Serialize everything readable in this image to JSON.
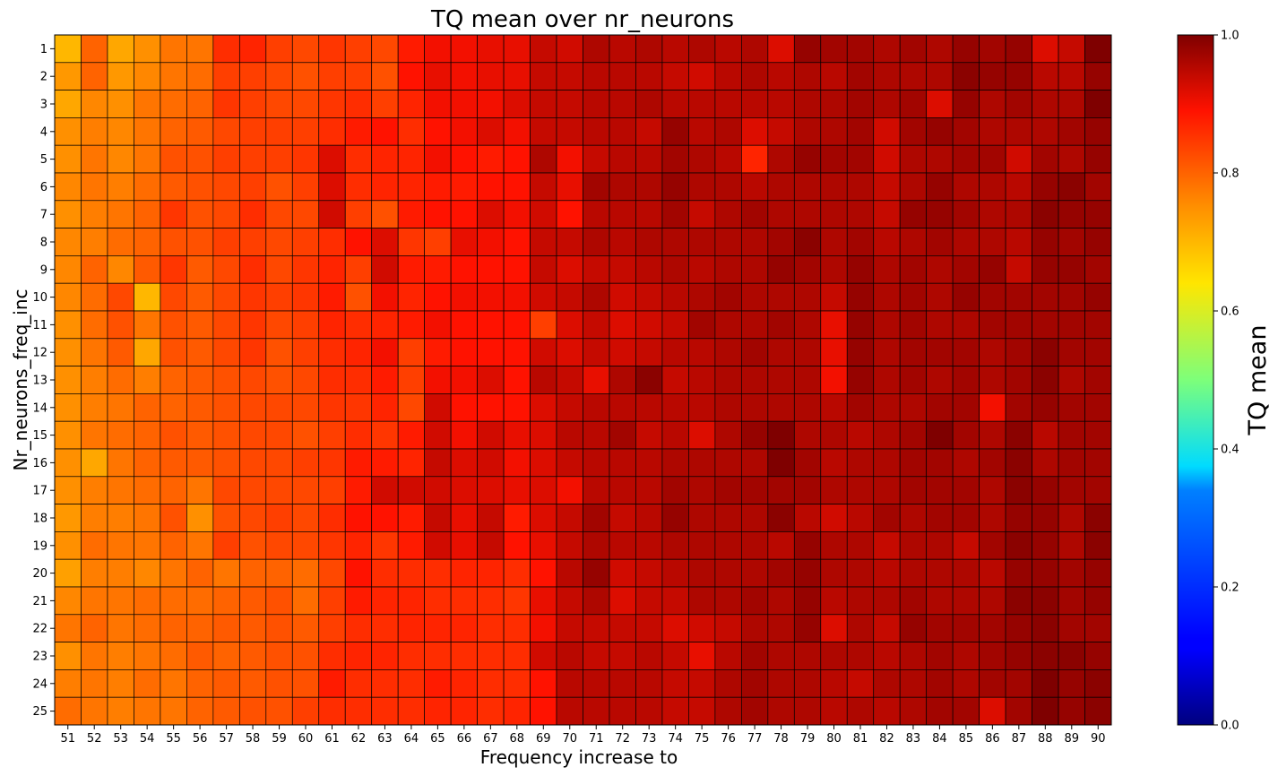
{
  "chart_data": {
    "type": "heatmap",
    "title": "TQ mean over nr_neurons",
    "xlabel": "Frequency increase to",
    "ylabel": "Nr_neurons_freq_inc",
    "x": [
      51,
      52,
      53,
      54,
      55,
      56,
      57,
      58,
      59,
      60,
      61,
      62,
      63,
      64,
      65,
      66,
      67,
      68,
      69,
      70,
      71,
      72,
      73,
      74,
      75,
      76,
      77,
      78,
      79,
      80,
      81,
      82,
      83,
      84,
      85,
      86,
      87,
      88,
      89,
      90
    ],
    "y": [
      1,
      2,
      3,
      4,
      5,
      6,
      7,
      8,
      9,
      10,
      11,
      12,
      13,
      14,
      15,
      16,
      17,
      18,
      19,
      20,
      21,
      22,
      23,
      24,
      25
    ],
    "colorbar": {
      "label": "TQ mean",
      "range": [
        0.0,
        1.0
      ],
      "ticks": [
        "0.0",
        "0.2",
        "0.4",
        "0.6",
        "0.8",
        "1.0"
      ],
      "colormap": "jet"
    },
    "grid": true,
    "values": [
      [
        0.7,
        0.8,
        0.72,
        0.75,
        0.78,
        0.78,
        0.86,
        0.87,
        0.84,
        0.83,
        0.85,
        0.84,
        0.83,
        0.88,
        0.9,
        0.9,
        0.91,
        0.91,
        0.94,
        0.93,
        0.96,
        0.95,
        0.96,
        0.95,
        0.96,
        0.95,
        0.96,
        0.92,
        0.98,
        0.97,
        0.97,
        0.96,
        0.97,
        0.96,
        0.98,
        0.97,
        0.98,
        0.92,
        0.94,
        1.0
      ],
      [
        0.74,
        0.8,
        0.74,
        0.76,
        0.78,
        0.79,
        0.84,
        0.84,
        0.83,
        0.82,
        0.84,
        0.84,
        0.82,
        0.89,
        0.91,
        0.9,
        0.91,
        0.91,
        0.94,
        0.94,
        0.95,
        0.95,
        0.95,
        0.94,
        0.93,
        0.95,
        0.96,
        0.95,
        0.96,
        0.95,
        0.97,
        0.96,
        0.96,
        0.96,
        0.99,
        0.98,
        0.98,
        0.95,
        0.95,
        0.98
      ],
      [
        0.72,
        0.76,
        0.75,
        0.78,
        0.79,
        0.8,
        0.85,
        0.84,
        0.83,
        0.83,
        0.85,
        0.86,
        0.84,
        0.87,
        0.9,
        0.9,
        0.9,
        0.92,
        0.94,
        0.94,
        0.95,
        0.95,
        0.96,
        0.95,
        0.95,
        0.95,
        0.95,
        0.95,
        0.96,
        0.96,
        0.97,
        0.96,
        0.97,
        0.92,
        0.98,
        0.96,
        0.97,
        0.96,
        0.96,
        1.0
      ],
      [
        0.75,
        0.77,
        0.76,
        0.78,
        0.8,
        0.81,
        0.83,
        0.84,
        0.84,
        0.84,
        0.86,
        0.88,
        0.89,
        0.86,
        0.89,
        0.9,
        0.92,
        0.9,
        0.94,
        0.94,
        0.95,
        0.95,
        0.94,
        0.98,
        0.95,
        0.96,
        0.92,
        0.94,
        0.96,
        0.96,
        0.97,
        0.93,
        0.97,
        0.98,
        0.97,
        0.96,
        0.96,
        0.96,
        0.97,
        0.98
      ],
      [
        0.75,
        0.78,
        0.76,
        0.78,
        0.82,
        0.82,
        0.84,
        0.84,
        0.84,
        0.85,
        0.92,
        0.86,
        0.87,
        0.87,
        0.9,
        0.89,
        0.88,
        0.89,
        0.96,
        0.9,
        0.94,
        0.95,
        0.95,
        0.97,
        0.96,
        0.95,
        0.87,
        0.96,
        0.98,
        0.97,
        0.97,
        0.93,
        0.96,
        0.96,
        0.97,
        0.97,
        0.93,
        0.97,
        0.96,
        0.98
      ],
      [
        0.76,
        0.78,
        0.77,
        0.79,
        0.81,
        0.82,
        0.83,
        0.84,
        0.82,
        0.84,
        0.92,
        0.86,
        0.87,
        0.87,
        0.88,
        0.88,
        0.89,
        0.89,
        0.94,
        0.91,
        0.97,
        0.96,
        0.96,
        0.98,
        0.96,
        0.96,
        0.95,
        0.96,
        0.96,
        0.96,
        0.96,
        0.94,
        0.96,
        0.98,
        0.96,
        0.96,
        0.95,
        0.98,
        0.99,
        0.97
      ],
      [
        0.75,
        0.77,
        0.78,
        0.8,
        0.85,
        0.82,
        0.83,
        0.86,
        0.83,
        0.83,
        0.93,
        0.84,
        0.82,
        0.88,
        0.89,
        0.89,
        0.92,
        0.9,
        0.93,
        0.89,
        0.95,
        0.95,
        0.95,
        0.97,
        0.94,
        0.96,
        0.97,
        0.96,
        0.96,
        0.96,
        0.96,
        0.94,
        0.98,
        0.98,
        0.97,
        0.96,
        0.96,
        0.99,
        0.98,
        0.98
      ],
      [
        0.76,
        0.77,
        0.79,
        0.8,
        0.82,
        0.82,
        0.84,
        0.84,
        0.83,
        0.84,
        0.86,
        0.89,
        0.92,
        0.85,
        0.84,
        0.91,
        0.9,
        0.89,
        0.94,
        0.94,
        0.96,
        0.95,
        0.96,
        0.96,
        0.96,
        0.96,
        0.96,
        0.97,
        0.99,
        0.96,
        0.97,
        0.95,
        0.96,
        0.97,
        0.96,
        0.96,
        0.95,
        0.98,
        0.97,
        0.98
      ],
      [
        0.76,
        0.8,
        0.76,
        0.81,
        0.85,
        0.81,
        0.83,
        0.86,
        0.83,
        0.85,
        0.87,
        0.84,
        0.93,
        0.88,
        0.88,
        0.89,
        0.89,
        0.89,
        0.94,
        0.92,
        0.94,
        0.94,
        0.95,
        0.96,
        0.95,
        0.96,
        0.96,
        0.98,
        0.97,
        0.96,
        0.98,
        0.96,
        0.97,
        0.96,
        0.97,
        0.98,
        0.94,
        0.98,
        0.98,
        0.97
      ],
      [
        0.76,
        0.79,
        0.83,
        0.7,
        0.83,
        0.81,
        0.83,
        0.85,
        0.84,
        0.85,
        0.88,
        0.82,
        0.9,
        0.87,
        0.89,
        0.9,
        0.9,
        0.9,
        0.93,
        0.94,
        0.96,
        0.93,
        0.94,
        0.95,
        0.96,
        0.97,
        0.96,
        0.96,
        0.96,
        0.94,
        0.98,
        0.96,
        0.97,
        0.96,
        0.98,
        0.97,
        0.97,
        0.97,
        0.97,
        0.98
      ],
      [
        0.75,
        0.79,
        0.82,
        0.78,
        0.82,
        0.81,
        0.83,
        0.85,
        0.83,
        0.84,
        0.87,
        0.86,
        0.87,
        0.88,
        0.9,
        0.89,
        0.89,
        0.89,
        0.84,
        0.92,
        0.94,
        0.92,
        0.93,
        0.94,
        0.97,
        0.96,
        0.96,
        0.97,
        0.96,
        0.91,
        0.98,
        0.96,
        0.97,
        0.96,
        0.96,
        0.97,
        0.97,
        0.97,
        0.97,
        0.97
      ],
      [
        0.75,
        0.78,
        0.81,
        0.72,
        0.82,
        0.81,
        0.83,
        0.85,
        0.82,
        0.84,
        0.86,
        0.87,
        0.9,
        0.84,
        0.88,
        0.89,
        0.89,
        0.89,
        0.93,
        0.92,
        0.94,
        0.93,
        0.94,
        0.95,
        0.95,
        0.96,
        0.97,
        0.96,
        0.96,
        0.91,
        0.98,
        0.96,
        0.97,
        0.97,
        0.97,
        0.96,
        0.97,
        0.99,
        0.97,
        0.97
      ],
      [
        0.75,
        0.77,
        0.79,
        0.77,
        0.8,
        0.81,
        0.82,
        0.83,
        0.82,
        0.83,
        0.86,
        0.86,
        0.88,
        0.84,
        0.9,
        0.9,
        0.92,
        0.89,
        0.95,
        0.94,
        0.91,
        0.96,
        0.99,
        0.94,
        0.95,
        0.96,
        0.96,
        0.96,
        0.96,
        0.9,
        0.98,
        0.96,
        0.97,
        0.96,
        0.97,
        0.96,
        0.97,
        0.99,
        0.96,
        0.97
      ],
      [
        0.75,
        0.77,
        0.78,
        0.8,
        0.8,
        0.81,
        0.82,
        0.83,
        0.83,
        0.83,
        0.85,
        0.85,
        0.87,
        0.83,
        0.93,
        0.89,
        0.89,
        0.89,
        0.92,
        0.94,
        0.95,
        0.95,
        0.95,
        0.95,
        0.95,
        0.96,
        0.96,
        0.96,
        0.96,
        0.95,
        0.97,
        0.96,
        0.96,
        0.97,
        0.97,
        0.9,
        0.97,
        0.98,
        0.97,
        0.97
      ],
      [
        0.75,
        0.78,
        0.79,
        0.8,
        0.82,
        0.81,
        0.82,
        0.83,
        0.83,
        0.82,
        0.84,
        0.86,
        0.85,
        0.88,
        0.93,
        0.9,
        0.93,
        0.91,
        0.92,
        0.95,
        0.95,
        0.97,
        0.94,
        0.95,
        0.92,
        0.96,
        0.98,
        1.0,
        0.96,
        0.96,
        0.95,
        0.96,
        0.97,
        1.0,
        0.97,
        0.96,
        0.99,
        0.95,
        0.97,
        0.97
      ],
      [
        0.75,
        0.72,
        0.78,
        0.8,
        0.81,
        0.81,
        0.82,
        0.83,
        0.83,
        0.84,
        0.85,
        0.88,
        0.88,
        0.87,
        0.94,
        0.92,
        0.93,
        0.9,
        0.92,
        0.94,
        0.95,
        0.95,
        0.95,
        0.96,
        0.96,
        0.96,
        0.96,
        1.0,
        0.97,
        0.95,
        0.96,
        0.96,
        0.97,
        0.97,
        0.96,
        0.97,
        0.99,
        0.96,
        0.97,
        0.97
      ],
      [
        0.75,
        0.77,
        0.78,
        0.79,
        0.8,
        0.78,
        0.83,
        0.83,
        0.83,
        0.83,
        0.84,
        0.88,
        0.93,
        0.93,
        0.93,
        0.92,
        0.92,
        0.91,
        0.92,
        0.9,
        0.95,
        0.95,
        0.95,
        0.97,
        0.96,
        0.97,
        0.97,
        0.97,
        0.97,
        0.96,
        0.96,
        0.96,
        0.97,
        0.97,
        0.97,
        0.96,
        0.99,
        0.98,
        0.97,
        0.97
      ],
      [
        0.74,
        0.77,
        0.77,
        0.78,
        0.82,
        0.75,
        0.82,
        0.83,
        0.84,
        0.83,
        0.86,
        0.89,
        0.89,
        0.88,
        0.94,
        0.91,
        0.94,
        0.88,
        0.92,
        0.94,
        0.97,
        0.94,
        0.95,
        0.98,
        0.96,
        0.96,
        0.96,
        0.99,
        0.95,
        0.93,
        0.95,
        0.97,
        0.96,
        0.97,
        0.97,
        0.96,
        0.98,
        0.98,
        0.96,
        0.99
      ],
      [
        0.75,
        0.79,
        0.78,
        0.78,
        0.8,
        0.78,
        0.84,
        0.82,
        0.83,
        0.83,
        0.85,
        0.87,
        0.85,
        0.88,
        0.93,
        0.91,
        0.94,
        0.89,
        0.91,
        0.94,
        0.96,
        0.95,
        0.95,
        0.96,
        0.96,
        0.96,
        0.96,
        0.95,
        0.98,
        0.96,
        0.96,
        0.94,
        0.96,
        0.96,
        0.94,
        0.97,
        0.99,
        0.98,
        0.96,
        0.99
      ],
      [
        0.73,
        0.77,
        0.77,
        0.76,
        0.78,
        0.8,
        0.78,
        0.8,
        0.8,
        0.79,
        0.83,
        0.89,
        0.86,
        0.86,
        0.86,
        0.87,
        0.87,
        0.86,
        0.89,
        0.95,
        0.98,
        0.93,
        0.94,
        0.95,
        0.96,
        0.96,
        0.96,
        0.97,
        0.98,
        0.96,
        0.96,
        0.95,
        0.96,
        0.96,
        0.96,
        0.95,
        0.98,
        0.98,
        0.97,
        0.98
      ],
      [
        0.76,
        0.78,
        0.78,
        0.79,
        0.79,
        0.79,
        0.8,
        0.81,
        0.82,
        0.79,
        0.84,
        0.88,
        0.87,
        0.87,
        0.86,
        0.86,
        0.86,
        0.85,
        0.91,
        0.94,
        0.96,
        0.92,
        0.94,
        0.94,
        0.96,
        0.96,
        0.97,
        0.96,
        0.98,
        0.95,
        0.96,
        0.96,
        0.97,
        0.96,
        0.96,
        0.96,
        0.99,
        0.99,
        0.97,
        0.98
      ],
      [
        0.78,
        0.8,
        0.78,
        0.79,
        0.8,
        0.8,
        0.81,
        0.81,
        0.82,
        0.81,
        0.84,
        0.86,
        0.86,
        0.87,
        0.87,
        0.87,
        0.86,
        0.86,
        0.9,
        0.94,
        0.94,
        0.94,
        0.94,
        0.92,
        0.93,
        0.94,
        0.96,
        0.96,
        0.98,
        0.92,
        0.96,
        0.94,
        0.98,
        0.97,
        0.97,
        0.97,
        0.98,
        0.99,
        0.97,
        0.97
      ],
      [
        0.75,
        0.78,
        0.77,
        0.78,
        0.79,
        0.81,
        0.8,
        0.81,
        0.82,
        0.82,
        0.86,
        0.87,
        0.87,
        0.86,
        0.86,
        0.86,
        0.86,
        0.86,
        0.93,
        0.95,
        0.94,
        0.94,
        0.95,
        0.94,
        0.91,
        0.95,
        0.97,
        0.96,
        0.96,
        0.96,
        0.96,
        0.95,
        0.96,
        0.97,
        0.96,
        0.97,
        0.98,
        0.99,
        0.99,
        0.98
      ],
      [
        0.77,
        0.78,
        0.77,
        0.79,
        0.78,
        0.8,
        0.81,
        0.81,
        0.82,
        0.82,
        0.88,
        0.86,
        0.86,
        0.86,
        0.88,
        0.87,
        0.86,
        0.86,
        0.89,
        0.95,
        0.95,
        0.95,
        0.95,
        0.94,
        0.94,
        0.96,
        0.97,
        0.96,
        0.96,
        0.95,
        0.94,
        0.96,
        0.96,
        0.97,
        0.96,
        0.97,
        0.97,
        1.0,
        0.98,
        0.99
      ],
      [
        0.79,
        0.78,
        0.77,
        0.78,
        0.78,
        0.8,
        0.81,
        0.82,
        0.82,
        0.84,
        0.86,
        0.86,
        0.86,
        0.86,
        0.87,
        0.87,
        0.86,
        0.87,
        0.89,
        0.95,
        0.95,
        0.95,
        0.95,
        0.94,
        0.94,
        0.96,
        0.97,
        0.96,
        0.96,
        0.95,
        0.96,
        0.95,
        0.96,
        0.97,
        0.97,
        0.92,
        0.97,
        1.0,
        0.98,
        0.99
      ]
    ]
  }
}
